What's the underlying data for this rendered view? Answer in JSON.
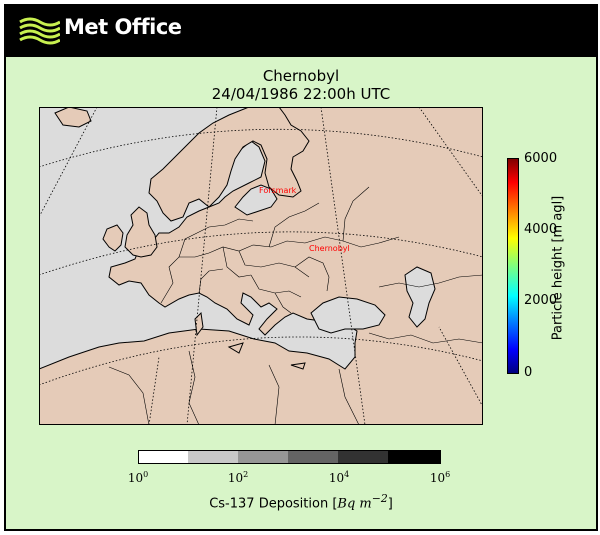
{
  "header": {
    "brand": "Met Office",
    "icon": "met-office-wave-logo",
    "background": "#000000"
  },
  "title": {
    "line1": "Chernobyl",
    "line2": "24/04/1986 22:00h UTC"
  },
  "map": {
    "region": "Europe",
    "sea_color": "#dcdcdc",
    "land_color": "#e5cbb8",
    "markers": [
      {
        "label": "Forsmark",
        "lon": 18.2,
        "lat": 60.4,
        "color": "#ff0000"
      },
      {
        "label": "Chernobyl",
        "lon": 30.1,
        "lat": 51.3,
        "color": "#ff0000"
      }
    ]
  },
  "particle_colorbar": {
    "label": "Particle height [m agl]",
    "ticks": [
      "6000",
      "4000",
      "2000",
      "0"
    ],
    "range": [
      0,
      6000
    ],
    "colormap": "jet"
  },
  "deposition_colorbar": {
    "label_prefix": "Cs-137 Deposition [",
    "label_units": "Bq m",
    "label_exp": "−2",
    "label_suffix": "]",
    "ticks": [
      {
        "base": "10",
        "exp": "0"
      },
      {
        "base": "10",
        "exp": "2"
      },
      {
        "base": "10",
        "exp": "4"
      },
      {
        "base": "10",
        "exp": "6"
      }
    ],
    "bins": [
      "#ffffff",
      "#c8c8c8",
      "#969696",
      "#646464",
      "#323232",
      "#000000"
    ]
  },
  "frame_background": "#d8f5c8"
}
